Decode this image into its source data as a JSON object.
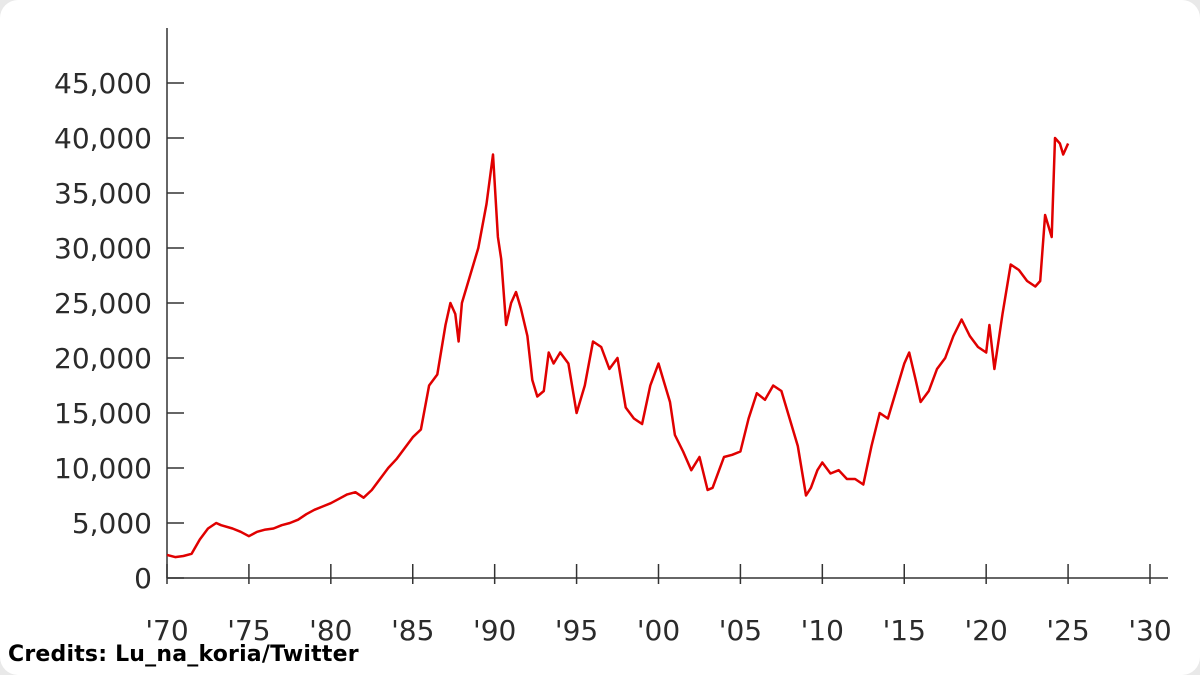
{
  "credit": "Credits: Lu_na_koria/Twitter",
  "chart_data": {
    "type": "line",
    "title": "",
    "xlabel": "",
    "ylabel": "",
    "xlim": [
      1970,
      2030
    ],
    "ylim": [
      0,
      48000
    ],
    "x_ticks": [
      1970,
      1975,
      1980,
      1985,
      1990,
      1995,
      2000,
      2005,
      2010,
      2015,
      2020,
      2025,
      2030
    ],
    "x_tick_labels": [
      "'70",
      "'75",
      "'80",
      "'85",
      "'90",
      "'95",
      "'00",
      "'05",
      "'10",
      "'15",
      "'20",
      "'25",
      "'30"
    ],
    "y_ticks": [
      0,
      5000,
      10000,
      15000,
      20000,
      25000,
      30000,
      35000,
      40000,
      45000
    ],
    "y_tick_labels": [
      "0",
      "5,000",
      "10,000",
      "15,000",
      "20,000",
      "25,000",
      "30,000",
      "35,000",
      "40,000",
      "45,000"
    ],
    "grid": false,
    "legend": "none",
    "series": [
      {
        "color": "#e00000",
        "x": [
          1970.0,
          1970.5,
          1971.0,
          1971.5,
          1972.0,
          1972.5,
          1973.0,
          1973.3,
          1974.0,
          1974.5,
          1975.0,
          1975.5,
          1976.0,
          1976.5,
          1977.0,
          1977.5,
          1978.0,
          1978.5,
          1979.0,
          1979.5,
          1980.0,
          1980.5,
          1981.0,
          1981.5,
          1982.0,
          1982.5,
          1983.0,
          1983.5,
          1984.0,
          1984.5,
          1985.0,
          1985.5,
          1986.0,
          1986.5,
          1987.0,
          1987.3,
          1987.6,
          1987.8,
          1988.0,
          1988.5,
          1989.0,
          1989.5,
          1989.9,
          1990.2,
          1990.4,
          1990.7,
          1991.0,
          1991.3,
          1991.6,
          1992.0,
          1992.3,
          1992.6,
          1993.0,
          1993.3,
          1993.6,
          1994.0,
          1994.5,
          1995.0,
          1995.5,
          1996.0,
          1996.5,
          1997.0,
          1997.5,
          1998.0,
          1998.5,
          1999.0,
          1999.5,
          2000.0,
          2000.3,
          2000.7,
          2001.0,
          2001.5,
          2002.0,
          2002.5,
          2003.0,
          2003.3,
          2003.7,
          2004.0,
          2004.5,
          2005.0,
          2005.5,
          2006.0,
          2006.5,
          2007.0,
          2007.5,
          2008.0,
          2008.5,
          2009.0,
          2009.3,
          2009.7,
          2010.0,
          2010.5,
          2011.0,
          2011.5,
          2012.0,
          2012.5,
          2013.0,
          2013.5,
          2014.0,
          2014.5,
          2015.0,
          2015.3,
          2015.7,
          2016.0,
          2016.5,
          2017.0,
          2017.5,
          2018.0,
          2018.5,
          2019.0,
          2019.5,
          2020.0,
          2020.2,
          2020.5,
          2021.0,
          2021.5,
          2022.0,
          2022.5,
          2023.0,
          2023.3,
          2023.6,
          2024.0,
          2024.2,
          2024.5,
          2024.7,
          2025.0
        ],
        "values": [
          2100,
          1900,
          2000,
          2200,
          3500,
          4500,
          5000,
          4800,
          4500,
          4200,
          3800,
          4200,
          4400,
          4500,
          4800,
          5000,
          5300,
          5800,
          6200,
          6500,
          6800,
          7200,
          7600,
          7800,
          7300,
          8000,
          9000,
          10000,
          10800,
          11800,
          12800,
          13500,
          17500,
          18500,
          23000,
          25000,
          24000,
          21500,
          25000,
          27500,
          30000,
          34000,
          38500,
          31000,
          29000,
          23000,
          25000,
          26000,
          24500,
          22000,
          18000,
          16500,
          17000,
          20500,
          19500,
          20500,
          19500,
          15000,
          17500,
          21500,
          21000,
          19000,
          20000,
          15500,
          14500,
          14000,
          17500,
          19500,
          18000,
          16000,
          13000,
          11500,
          9800,
          11000,
          8000,
          8200,
          9800,
          11000,
          11200,
          11500,
          14500,
          16800,
          16200,
          17500,
          17000,
          14500,
          12000,
          7500,
          8200,
          9800,
          10500,
          9500,
          9800,
          9000,
          9000,
          8500,
          12000,
          15000,
          14500,
          17000,
          19500,
          20500,
          18000,
          16000,
          17000,
          19000,
          20000,
          22000,
          23500,
          22000,
          21000,
          20500,
          23000,
          19000,
          24000,
          28500,
          28000,
          27000,
          26500,
          27000,
          33000,
          31000,
          40000,
          39500,
          38500,
          39500
        ]
      }
    ]
  }
}
